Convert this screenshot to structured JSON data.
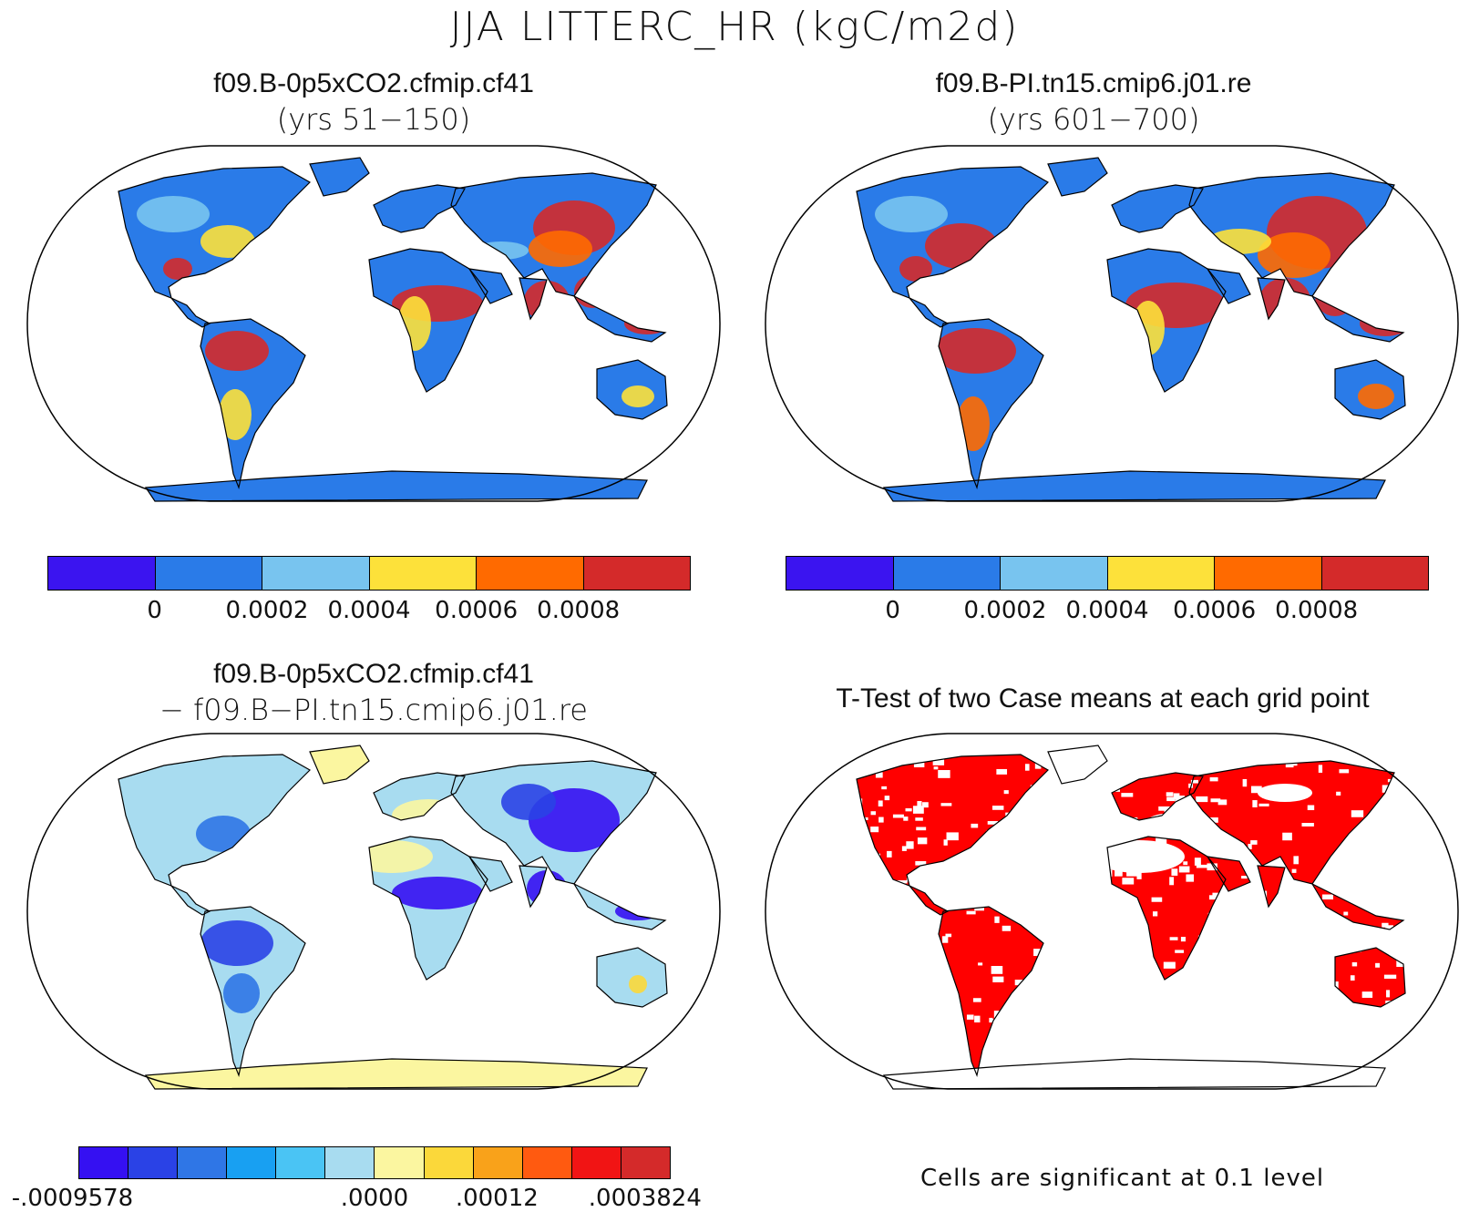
{
  "title": "JJA LITTERC_HR (kgC/m2d)",
  "panels": {
    "top_left": {
      "title": "f09.B-0p5xCO2.cfmip.cf41",
      "subtitle": "(yrs 51−150)"
    },
    "top_right": {
      "title": "f09.B-PI.tn15.cmip6.j01.re",
      "subtitle": "(yrs 601−700)"
    },
    "bottom_left": {
      "title": "f09.B-0p5xCO2.cfmip.cf41",
      "subtitle": "− f09.B−PI.tn15.cmip6.j01.re"
    },
    "bottom_right": {
      "title": "T-Test of two Case means at each grid point",
      "note": "Cells are significant at 0.1 level"
    }
  },
  "colorbars": {
    "abs": {
      "colors": [
        "#3b14f0",
        "#2a7be8",
        "#78c4ef",
        "#fde13a",
        "#ff6a00",
        "#d42a2a"
      ],
      "labels": [
        "0",
        "0.0002",
        "0.0004",
        "0.0006",
        "0.0008"
      ]
    },
    "diff": {
      "colors": [
        "#3510f2",
        "#2a42e6",
        "#2f76e6",
        "#18a0f2",
        "#4ac4f4",
        "#a8dcf0",
        "#fbf6a0",
        "#fbd83a",
        "#f9a21a",
        "#ff5a10",
        "#f11414",
        "#d42a2a"
      ],
      "labels": [
        "-.0009578",
        ".0000",
        ".00012",
        ".0003824"
      ]
    }
  },
  "colors": {
    "ocean": "#ffffff",
    "land_abs": "#2a7be8",
    "land_diff": "#a8dcf0",
    "antarctica_diff": "#fbf6a0",
    "significant": "#ff0000"
  }
}
